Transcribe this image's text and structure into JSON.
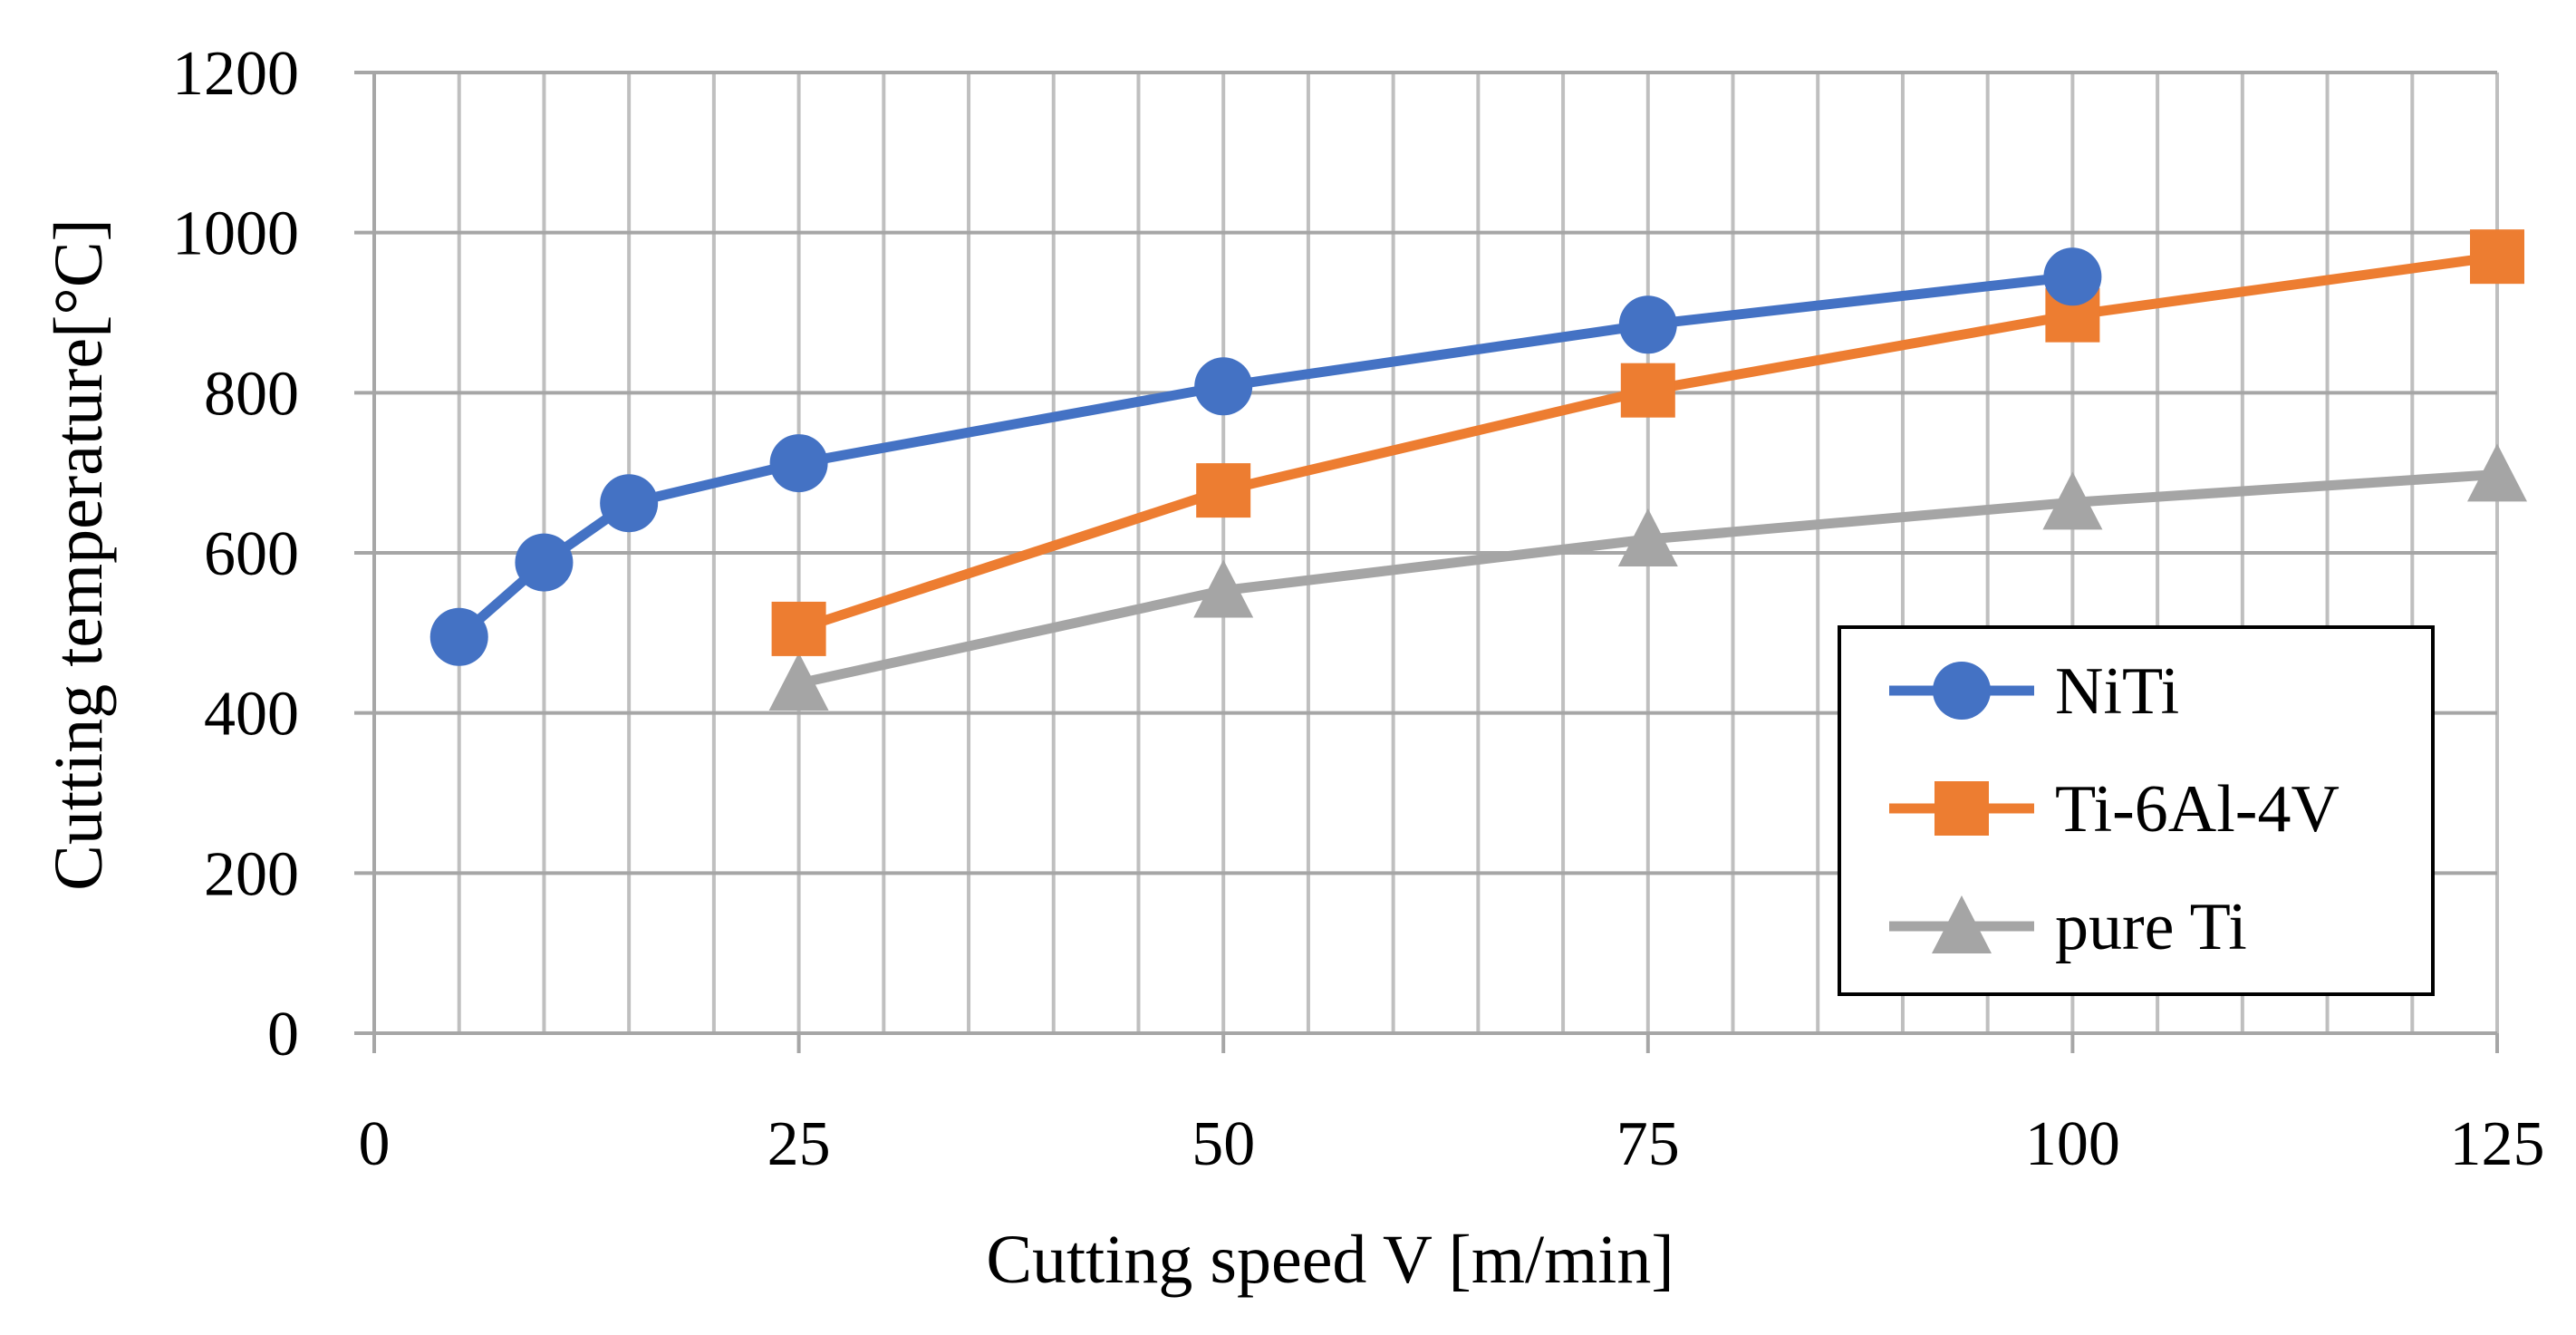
{
  "chart_data": {
    "type": "line",
    "title": "",
    "xlabel": "Cutting speed V [m/min]",
    "ylabel": "Cutting temperature[°C]",
    "xlim": [
      0,
      125
    ],
    "ylim": [
      0,
      1200
    ],
    "x_ticks": [
      0,
      25,
      50,
      75,
      100,
      125
    ],
    "x_tick_labels": [
      "0",
      "25",
      "50",
      "75",
      "100",
      "125"
    ],
    "x_minor_step": 5,
    "y_ticks": [
      0,
      200,
      400,
      600,
      800,
      1000,
      1200
    ],
    "y_tick_labels": [
      "0",
      "200",
      "400",
      "600",
      "800",
      "1000",
      "1200"
    ],
    "grid": true,
    "legend_position": "right",
    "series": [
      {
        "name": "NiTi",
        "marker": "circle",
        "color": "#4472C4",
        "x": [
          5,
          10,
          15,
          25,
          50,
          75,
          100
        ],
        "values": [
          495,
          588,
          662,
          712,
          808,
          885,
          945
        ]
      },
      {
        "name": "Ti-6Al-4V",
        "marker": "square",
        "color": "#ED7D31",
        "x": [
          25,
          50,
          75,
          100,
          125
        ],
        "values": [
          505,
          678,
          803,
          897,
          970
        ]
      },
      {
        "name": "pure Ti",
        "marker": "triangle",
        "color": "#A5A5A5",
        "x": [
          25,
          50,
          75,
          100,
          125
        ],
        "values": [
          437,
          553,
          617,
          663,
          698
        ]
      }
    ]
  }
}
